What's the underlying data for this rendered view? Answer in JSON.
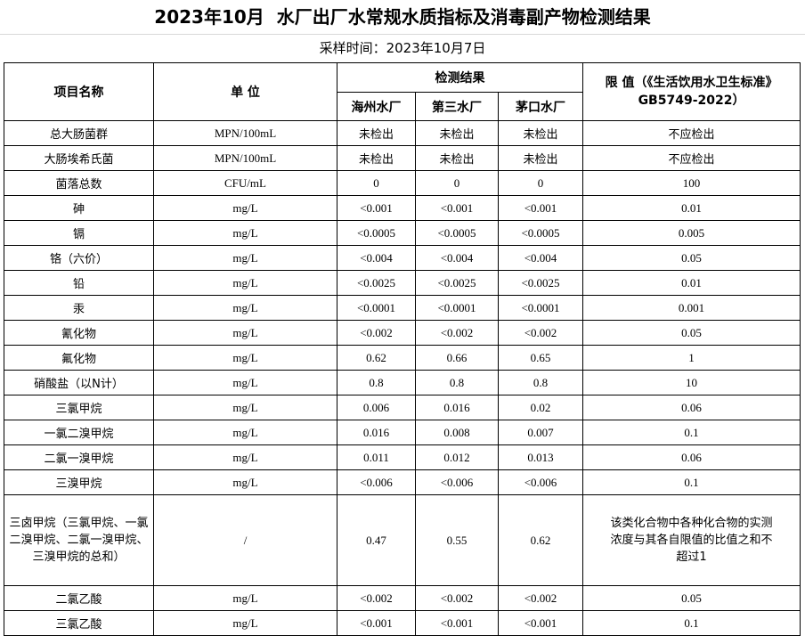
{
  "title": "2023年10月  水厂出厂水常规水质指标及消毒副产物检测结果",
  "subtitle": "采样时间：2023年10月7日",
  "table": {
    "headers": {
      "item": "项目名称",
      "unit": "单 位",
      "results": "检测结果",
      "plants": [
        "海州水厂",
        "第三水厂",
        "茅口水厂"
      ],
      "limit": "限 值（《生活饮用水卫生标准》\nGB5749-2022）"
    },
    "rows": [
      [
        "总大肠菌群",
        "MPN/100mL",
        "未检出",
        "未检出",
        "未检出",
        "不应检出"
      ],
      [
        "大肠埃希氏菌",
        "MPN/100mL",
        "未检出",
        "未检出",
        "未检出",
        "不应检出"
      ],
      [
        "菌落总数",
        "CFU/mL",
        "0",
        "0",
        "0",
        "100"
      ],
      [
        "砷",
        "mg/L",
        "<0.001",
        "<0.001",
        "<0.001",
        "0.01"
      ],
      [
        "镉",
        "mg/L",
        "<0.0005",
        "<0.0005",
        "<0.0005",
        "0.005"
      ],
      [
        "铬（六价）",
        "mg/L",
        "<0.004",
        "<0.004",
        "<0.004",
        "0.05"
      ],
      [
        "铅",
        "mg/L",
        "<0.0025",
        "<0.0025",
        "<0.0025",
        "0.01"
      ],
      [
        "汞",
        "mg/L",
        "<0.0001",
        "<0.0001",
        "<0.0001",
        "0.001"
      ],
      [
        "氰化物",
        "mg/L",
        "<0.002",
        "<0.002",
        "<0.002",
        "0.05"
      ],
      [
        "氟化物",
        "mg/L",
        "0.62",
        "0.66",
        "0.65",
        "1"
      ],
      [
        "硝酸盐（以N计）",
        "mg/L",
        "0.8",
        "0.8",
        "0.8",
        "10"
      ],
      [
        "三氯甲烷",
        "mg/L",
        "0.006",
        "0.016",
        "0.02",
        "0.06"
      ],
      [
        "一氯二溴甲烷",
        "mg/L",
        "0.016",
        "0.008",
        "0.007",
        "0.1"
      ],
      [
        "二氯一溴甲烷",
        "mg/L",
        "0.011",
        "0.012",
        "0.013",
        "0.06"
      ],
      [
        "三溴甲烷",
        "mg/L",
        "<0.006",
        "<0.006",
        "<0.006",
        "0.1"
      ],
      [
        "三卤甲烷（三氯甲烷、一氯二溴甲烷、二氯一溴甲烷、三溴甲烷的总和）",
        "/",
        "0.47",
        "0.55",
        "0.62",
        "该类化合物中各种化合物的实测浓度与其各自限值的比值之和不超过1"
      ],
      [
        "二氯乙酸",
        "mg/L",
        "<0.002",
        "<0.002",
        "<0.002",
        "0.05"
      ],
      [
        "三氯乙酸",
        "mg/L",
        "<0.001",
        "<0.001",
        "<0.001",
        "0.1"
      ]
    ]
  }
}
